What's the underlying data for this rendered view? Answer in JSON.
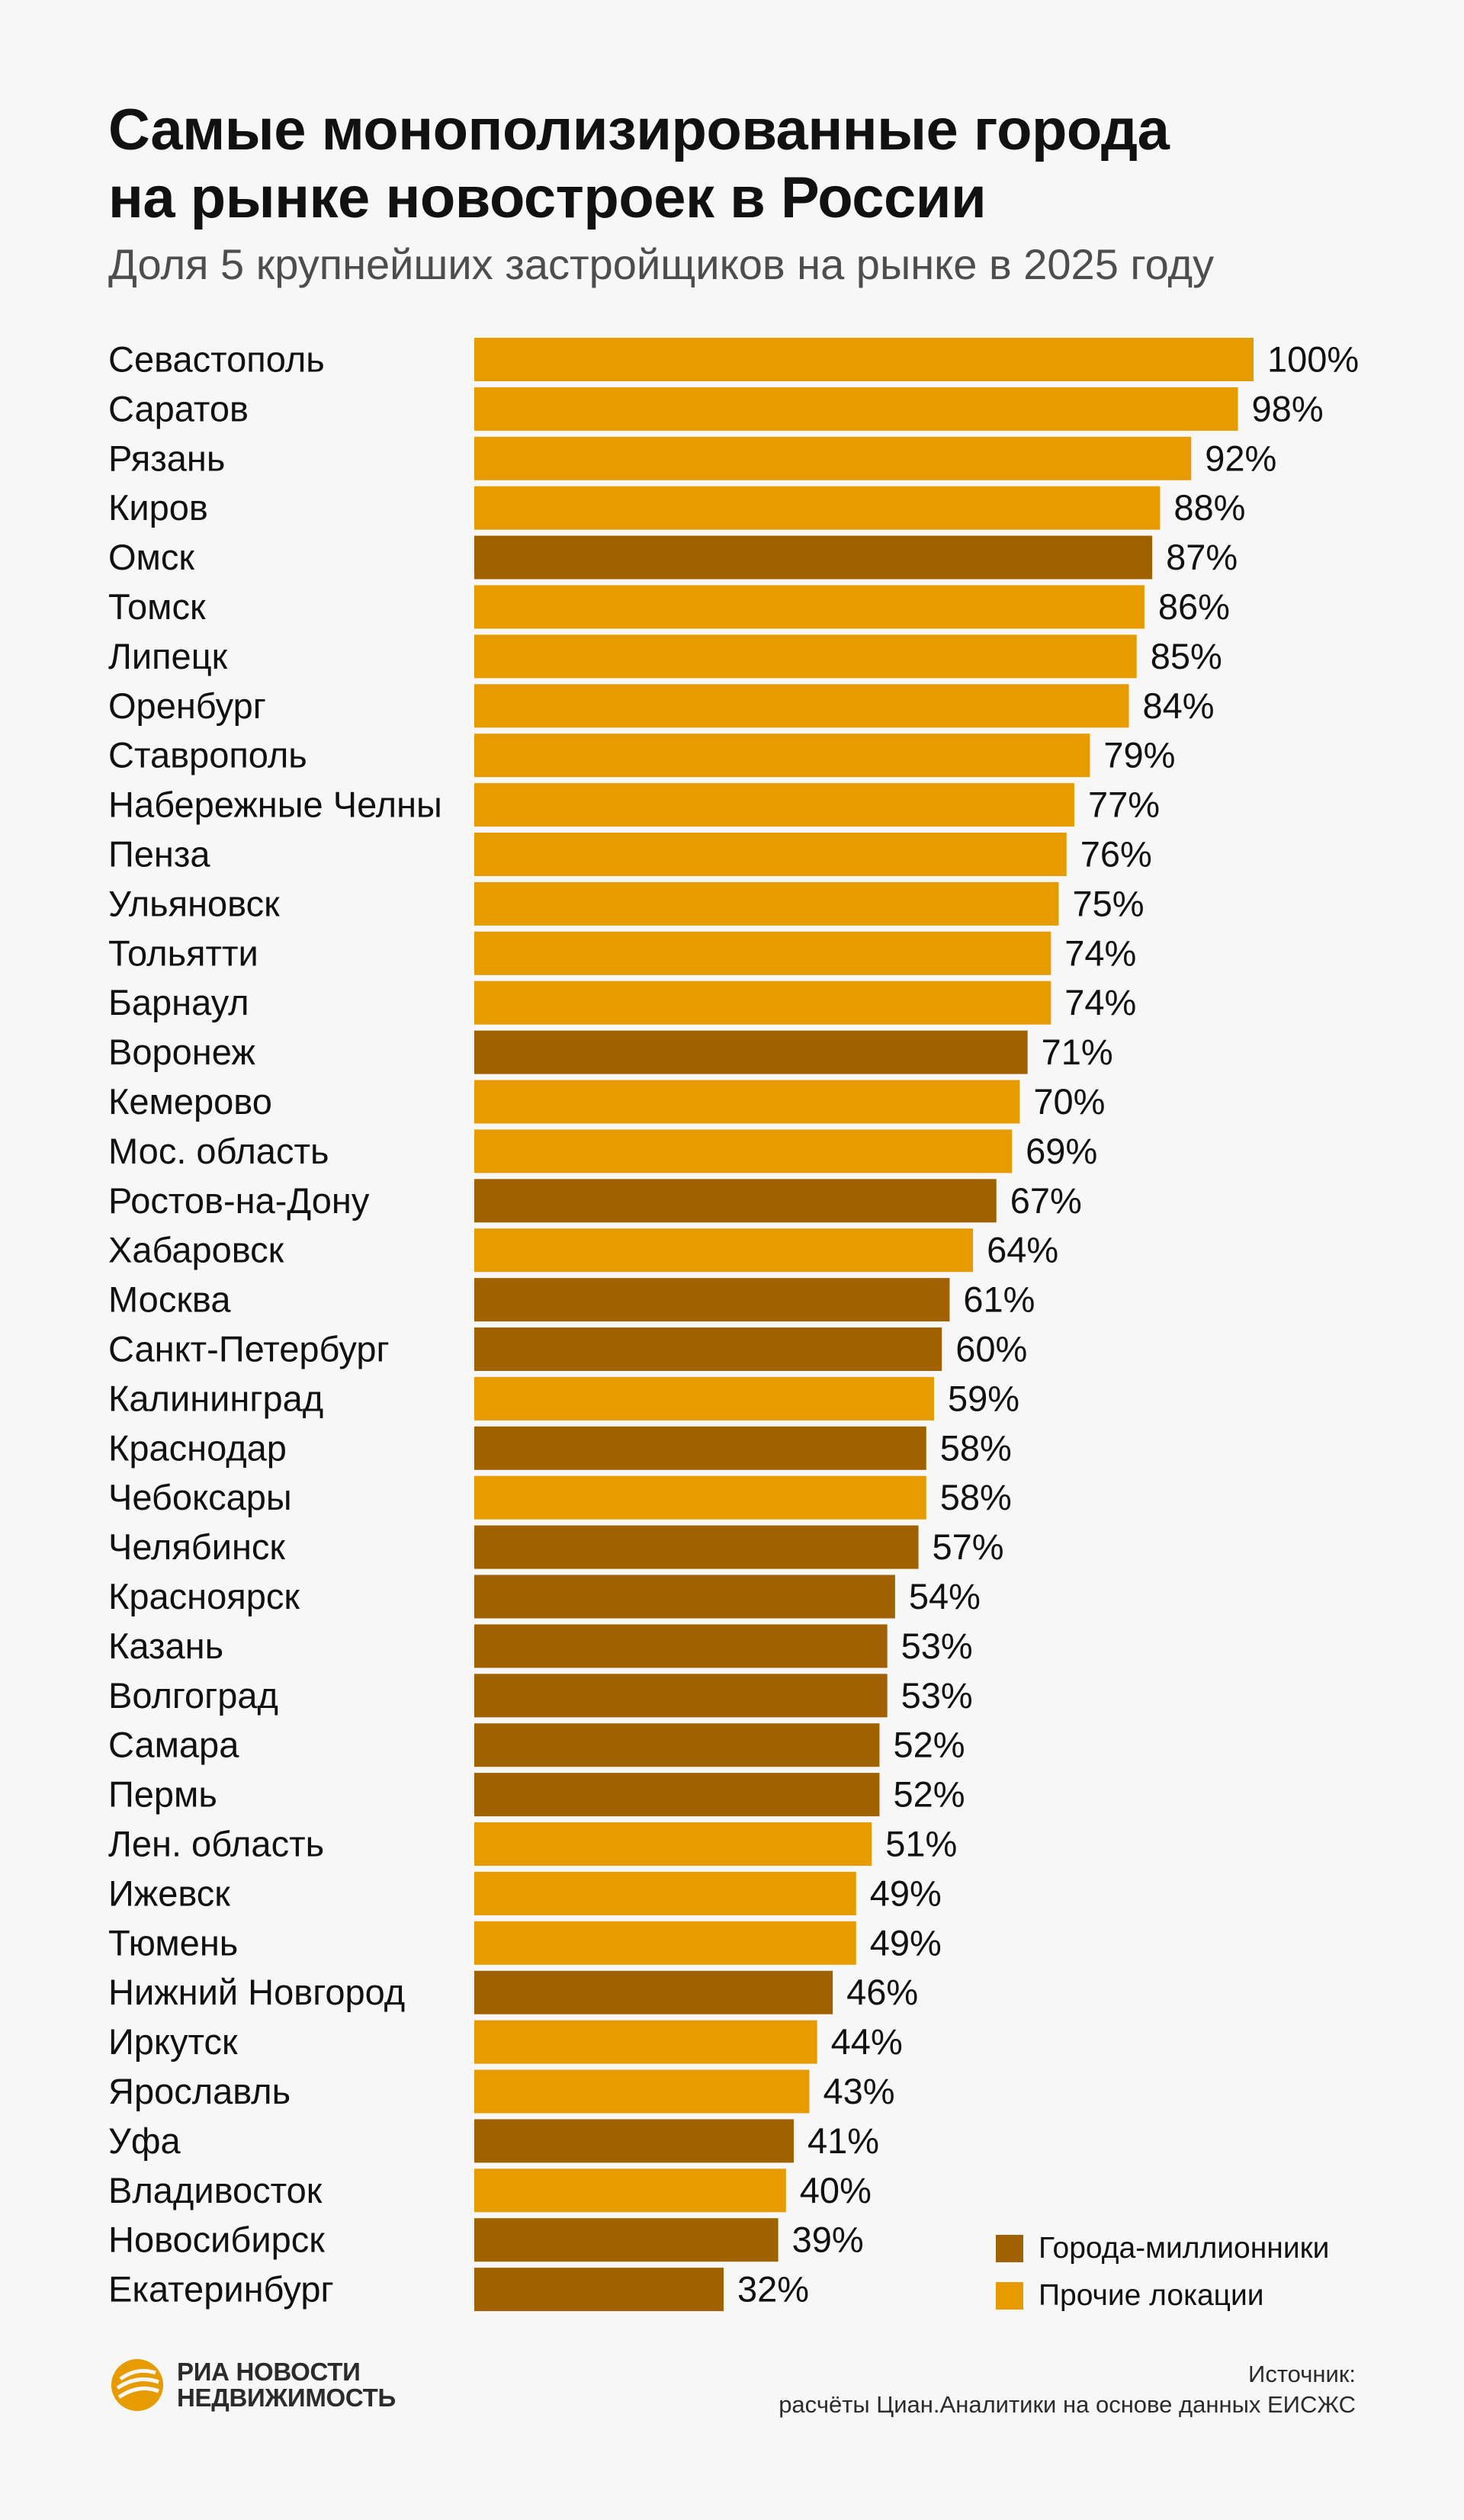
{
  "header": {
    "title_line1": "Самые монополизированные города",
    "title_line2": "на рынке новостроек в России",
    "subtitle": "Доля 5 крупнейших застройщиков на рынке в 2025 году"
  },
  "colors": {
    "million": "#a06200",
    "other": "#e69b00"
  },
  "legend": {
    "million_label": "Города-миллионники",
    "other_label": "Прочие локации"
  },
  "footer": {
    "logo_line1": "РИА НОВОСТИ",
    "logo_line2": "НЕДВИЖИМОСТЬ",
    "source_line1": "Источник:",
    "source_line2": "расчёты Циан.Аналитики на основе данных ЕИСЖС"
  },
  "chart_data": {
    "type": "bar",
    "orientation": "horizontal",
    "unit": "%",
    "xlim": [
      0,
      100
    ],
    "grid": false,
    "legend_position": "bottom-right",
    "categories": [
      "Севастополь",
      "Саратов",
      "Рязань",
      "Киров",
      "Омск",
      "Томск",
      "Липецк",
      "Оренбург",
      "Ставрополь",
      "Набережные Челны",
      "Пенза",
      "Ульяновск",
      "Тольятти",
      "Барнаул",
      "Воронеж",
      "Кемерово",
      "Мос. область",
      "Ростов-на-Дону",
      "Хабаровск",
      "Москва",
      "Санкт-Петербург",
      "Калининград",
      "Краснодар",
      "Чебоксары",
      "Челябинск",
      "Красноярск",
      "Казань",
      "Волгоград",
      "Самара",
      "Пермь",
      "Лен. область",
      "Ижевск",
      "Тюмень",
      "Нижний Новгород",
      "Иркутск",
      "Ярославль",
      "Уфа",
      "Владивосток",
      "Новосибирск",
      "Екатеринбург"
    ],
    "values": [
      100,
      98,
      92,
      88,
      87,
      86,
      85,
      84,
      79,
      77,
      76,
      75,
      74,
      74,
      71,
      70,
      69,
      67,
      64,
      61,
      60,
      59,
      58,
      58,
      57,
      54,
      53,
      53,
      52,
      52,
      51,
      49,
      49,
      46,
      44,
      43,
      41,
      40,
      39,
      32
    ],
    "groups": [
      "other",
      "other",
      "other",
      "other",
      "million",
      "other",
      "other",
      "other",
      "other",
      "other",
      "other",
      "other",
      "other",
      "other",
      "million",
      "other",
      "other",
      "million",
      "other",
      "million",
      "million",
      "other",
      "million",
      "other",
      "million",
      "million",
      "million",
      "million",
      "million",
      "million",
      "other",
      "other",
      "other",
      "million",
      "other",
      "other",
      "million",
      "other",
      "million",
      "million"
    ],
    "group_names": {
      "million": "Города-миллионники",
      "other": "Прочие локации"
    }
  }
}
